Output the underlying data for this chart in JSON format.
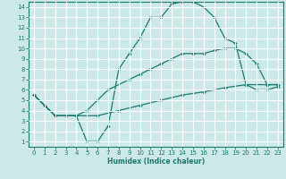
{
  "xlabel": "Humidex (Indice chaleur)",
  "bg_color": "#cce8e8",
  "grid_color": "#ffffff",
  "line_color": "#1a7a6e",
  "xlim": [
    -0.5,
    23.5
  ],
  "ylim": [
    0.5,
    14.5
  ],
  "xticks": [
    0,
    1,
    2,
    3,
    4,
    5,
    6,
    7,
    8,
    9,
    10,
    11,
    12,
    13,
    14,
    15,
    16,
    17,
    18,
    19,
    20,
    21,
    22,
    23
  ],
  "yticks": [
    1,
    2,
    3,
    4,
    5,
    6,
    7,
    8,
    9,
    10,
    11,
    12,
    13,
    14
  ],
  "curve1_x": [
    0,
    1,
    2,
    3,
    4,
    5,
    6,
    7,
    8,
    9,
    10,
    11,
    12,
    13,
    14,
    15,
    16,
    17,
    18,
    19,
    20,
    21,
    22,
    23
  ],
  "curve1_y": [
    5.5,
    4.5,
    3.5,
    3.5,
    3.5,
    1.0,
    1.0,
    2.5,
    8.0,
    9.5,
    11.0,
    13.0,
    13.0,
    14.3,
    14.5,
    14.5,
    14.0,
    13.0,
    11.0,
    10.5,
    6.5,
    6.0,
    6.0,
    6.3
  ],
  "curve2_x": [
    0,
    2,
    4,
    5,
    6,
    7,
    9,
    10,
    11,
    12,
    13,
    14,
    15,
    16,
    17,
    18,
    19,
    20,
    21,
    22,
    23
  ],
  "curve2_y": [
    5.5,
    3.5,
    3.5,
    4.0,
    5.0,
    6.0,
    7.0,
    7.5,
    8.0,
    8.5,
    9.0,
    9.5,
    9.5,
    9.5,
    9.8,
    10.0,
    10.0,
    9.5,
    8.5,
    6.5,
    6.5
  ],
  "curve3_x": [
    0,
    2,
    4,
    6,
    8,
    10,
    12,
    14,
    16,
    18,
    20,
    22,
    23
  ],
  "curve3_y": [
    5.5,
    3.5,
    3.5,
    3.5,
    4.0,
    4.5,
    5.0,
    5.5,
    5.8,
    6.2,
    6.5,
    6.5,
    6.5
  ]
}
